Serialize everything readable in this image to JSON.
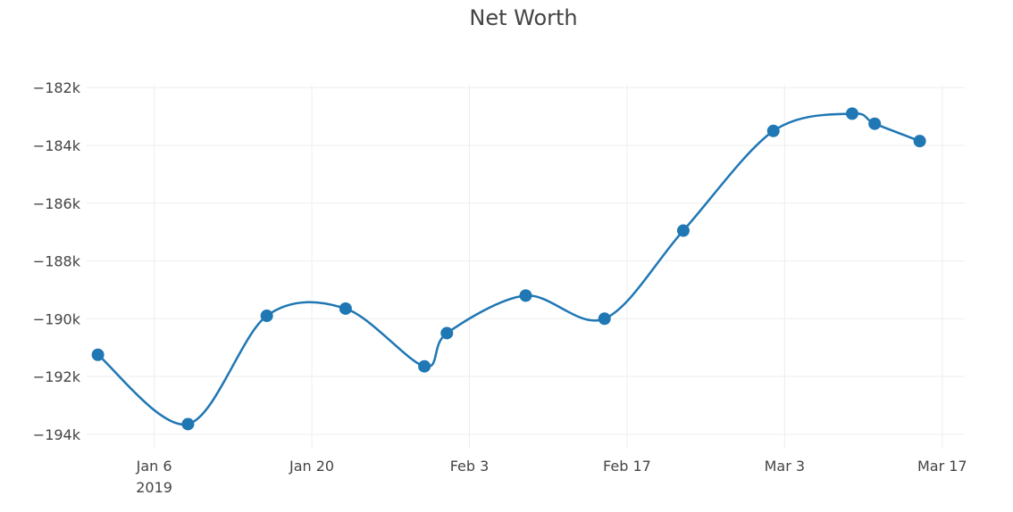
{
  "chart_data": {
    "type": "line",
    "title": "Net Worth",
    "xlabel": "",
    "ylabel": "",
    "line_shape": "spline",
    "grid": true,
    "legend": "none",
    "color": "#1f77b4",
    "x_ticks": [
      {
        "date": "2019-01-06",
        "label": "Jan 6",
        "sublabel": "2019"
      },
      {
        "date": "2019-01-20",
        "label": "Jan 20",
        "sublabel": ""
      },
      {
        "date": "2019-02-03",
        "label": "Feb 3",
        "sublabel": ""
      },
      {
        "date": "2019-02-17",
        "label": "Feb 17",
        "sublabel": ""
      },
      {
        "date": "2019-03-03",
        "label": "Mar 3",
        "sublabel": ""
      },
      {
        "date": "2019-03-17",
        "label": "Mar 17",
        "sublabel": ""
      }
    ],
    "y_ticks": [
      {
        "value": -182000,
        "label": "−182k"
      },
      {
        "value": -184000,
        "label": "−184k"
      },
      {
        "value": -186000,
        "label": "−186k"
      },
      {
        "value": -188000,
        "label": "−188k"
      },
      {
        "value": -190000,
        "label": "−190k"
      },
      {
        "value": -192000,
        "label": "−192k"
      },
      {
        "value": -194000,
        "label": "−194k"
      }
    ],
    "xlim": [
      "2018-12-31",
      "2019-03-19"
    ],
    "ylim": [
      -194500,
      -181900
    ],
    "points": [
      {
        "x": "2019-01-01",
        "y": -191250
      },
      {
        "x": "2019-01-09",
        "y": -193650
      },
      {
        "x": "2019-01-16",
        "y": -189900
      },
      {
        "x": "2019-01-23",
        "y": -189650
      },
      {
        "x": "2019-01-30",
        "y": -191650
      },
      {
        "x": "2019-02-01",
        "y": -190500
      },
      {
        "x": "2019-02-08",
        "y": -189200
      },
      {
        "x": "2019-02-15",
        "y": -190000
      },
      {
        "x": "2019-02-22",
        "y": -186950
      },
      {
        "x": "2019-03-02",
        "y": -183500
      },
      {
        "x": "2019-03-09",
        "y": -182900
      },
      {
        "x": "2019-03-11",
        "y": -183250
      },
      {
        "x": "2019-03-15",
        "y": -183850
      }
    ]
  }
}
